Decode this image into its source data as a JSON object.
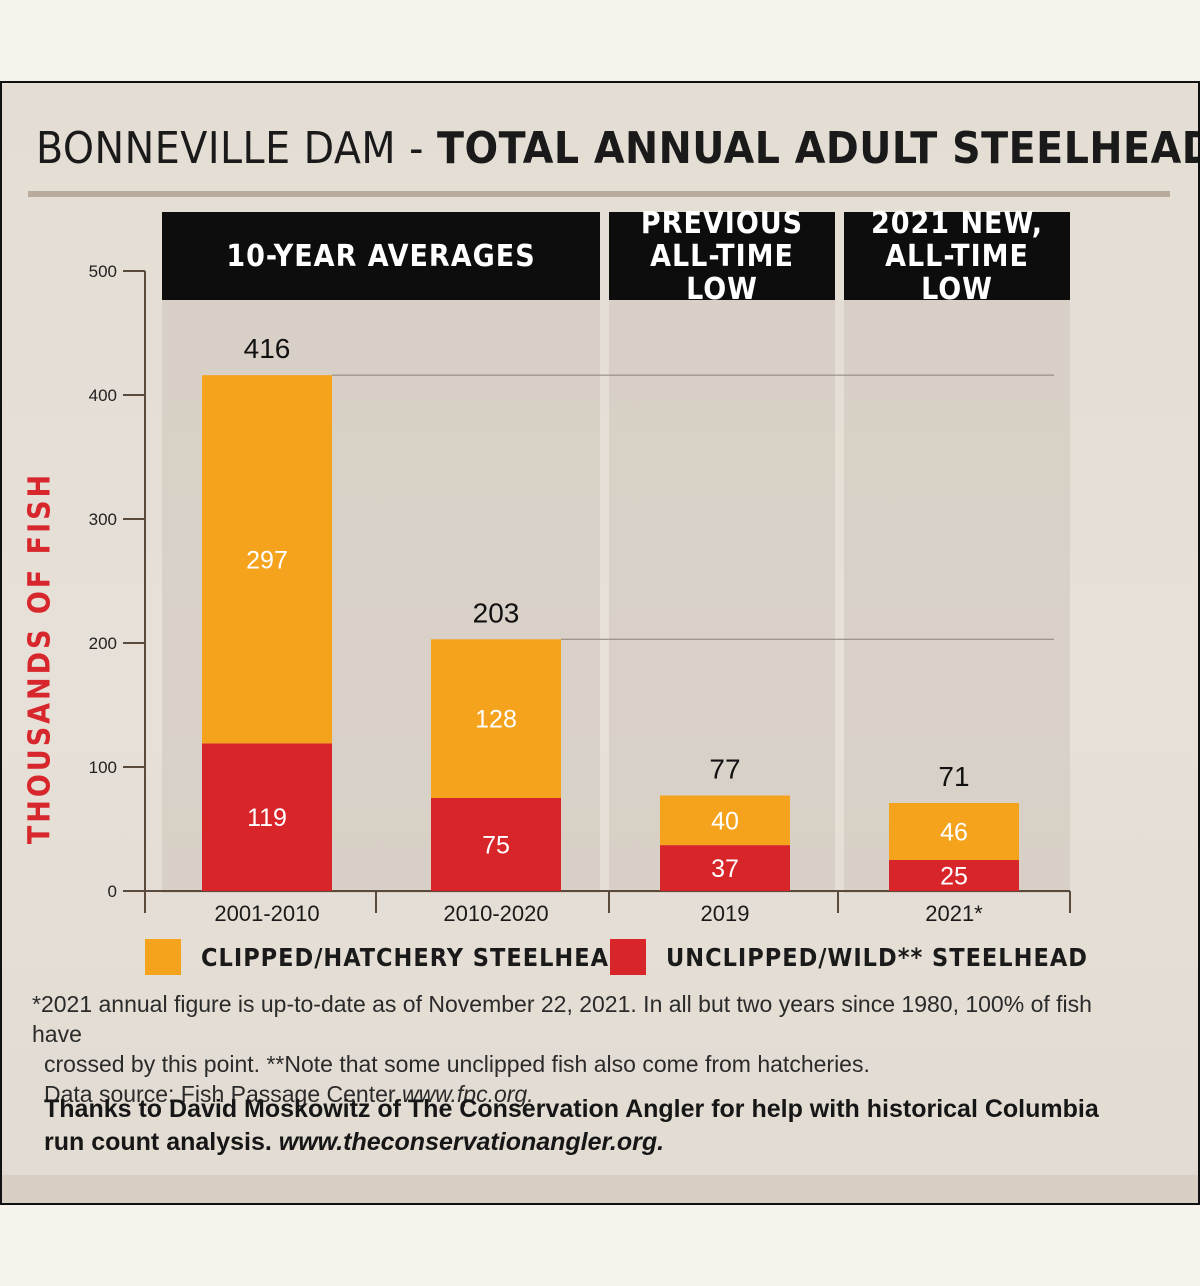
{
  "title": {
    "light": "BONNEVILLE DAM - ",
    "bold": "TOTAL ANNUAL ADULT STEELHEAD COUNTS"
  },
  "headers": [
    {
      "text": "10-YEAR AVERAGES"
    },
    {
      "text": "PREVIOUS\nALL-TIME LOW"
    },
    {
      "text": "2021 NEW,\nALL-TIME LOW"
    }
  ],
  "legend": {
    "clipped": "CLIPPED/HATCHERY STEELHEAD",
    "unclipped": "UNCLIPPED/WILD** STEELHEAD"
  },
  "colors": {
    "clipped": "#f5a31d",
    "unclipped": "#d8252a",
    "axis": "#5a4a3c",
    "header_bg": "#0d0d0d",
    "ylabel": "#d7262c"
  },
  "footnote": {
    "line1": "*2021 annual figure is up-to-date as of November 22, 2021. In all but two years since 1980, 100% of fish have",
    "line2": "crossed by this point. **Note that some unclipped fish also come from hatcheries.",
    "line3_prefix": "Data source: Fish Passage Center ",
    "line3_link": "www.fpc.org."
  },
  "credits": {
    "line1": "Thanks to David Moskowitz of The Conservation Angler for help with historical Columbia",
    "line2_prefix": "run count analysis. ",
    "line2_link": "www.theconservationangler.org."
  },
  "chart_data": {
    "type": "bar",
    "stacked": true,
    "title": "BONNEVILLE DAM - TOTAL ANNUAL ADULT STEELHEAD COUNTS",
    "ylabel": "THOUSANDS OF FISH",
    "ylim": [
      0,
      500
    ],
    "yticks": [
      0,
      100,
      200,
      300,
      400,
      500
    ],
    "categories": [
      "2001-2010",
      "2010-2020",
      "2019",
      "2021*"
    ],
    "series": [
      {
        "name": "UNCLIPPED/WILD** STEELHEAD",
        "values": [
          119,
          75,
          37,
          25
        ]
      },
      {
        "name": "CLIPPED/HATCHERY STEELHEAD",
        "values": [
          297,
          128,
          40,
          46
        ]
      }
    ],
    "totals": [
      416,
      203,
      77,
      71
    ],
    "grid": false,
    "legend_position": "bottom"
  }
}
